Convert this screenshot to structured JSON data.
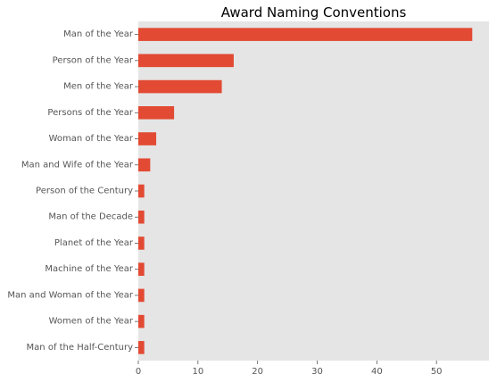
{
  "chart_data": {
    "type": "bar",
    "orientation": "horizontal",
    "title": "Award Naming Conventions",
    "xlabel": "",
    "ylabel": "",
    "xlim": [
      0,
      58.8
    ],
    "xticks": [
      0,
      10,
      20,
      30,
      40,
      50
    ],
    "grid": false,
    "categories": [
      "Man of the Year",
      "Person of the Year",
      "Men of the Year",
      "Persons of the Year",
      "Woman of the Year",
      "Man and Wife of the Year",
      "Person of the Century",
      "Man of the Decade",
      "Planet of the Year",
      "Machine of the Year",
      "Man and Woman of the Year",
      "Women of the Year",
      "Man of the Half-Century"
    ],
    "values": [
      56,
      16,
      14,
      6,
      3,
      2,
      1,
      1,
      1,
      1,
      1,
      1,
      1
    ],
    "colors": {
      "bar": "#e24a33",
      "plot_background": "#e5e5e5",
      "text": "#555555",
      "title": "#000000"
    }
  }
}
